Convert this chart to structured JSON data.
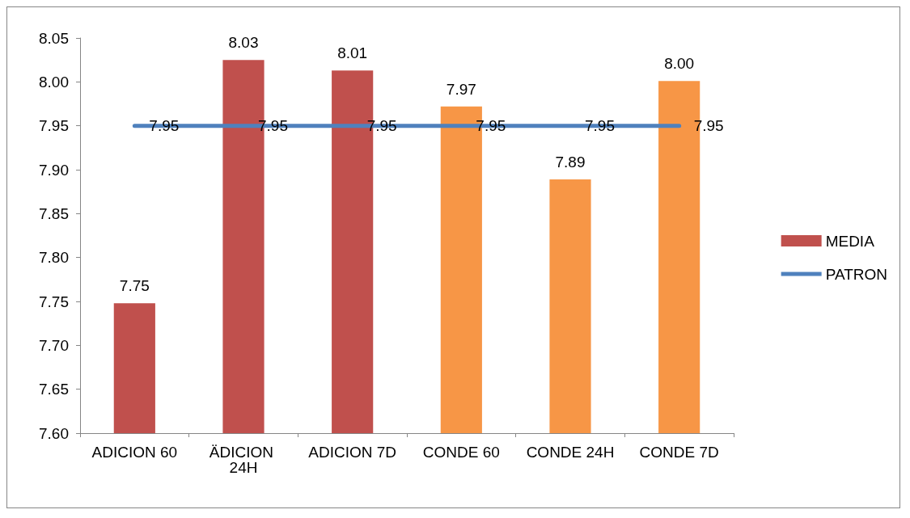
{
  "chart_data": {
    "type": "bar",
    "categories": [
      "ADICION 60",
      "ÄDICION 24H",
      "ADICION 7D",
      "CONDE 60",
      "CONDE 24H",
      "CONDE 7D"
    ],
    "series": [
      {
        "name": "MEDIA",
        "color": "#c0504d",
        "colors": [
          "#c0504d",
          "#c0504d",
          "#c0504d",
          "#f79646",
          "#f79646",
          "#f79646"
        ],
        "values": [
          7.748,
          8.025,
          8.013,
          7.972,
          7.889,
          8.001
        ],
        "value_labels": [
          "7.75",
          "8.03",
          "8.01",
          "7.97",
          "7.89",
          "8.00"
        ]
      },
      {
        "name": "PATRON",
        "type": "line",
        "color": "#4f81bd",
        "values": [
          7.95,
          7.95,
          7.95,
          7.95,
          7.95,
          7.95
        ],
        "value_labels": [
          "7.95",
          "7.95",
          "7.95",
          "7.95",
          "7.95",
          "7.95"
        ]
      }
    ],
    "ylim": [
      7.6,
      8.05
    ],
    "yticks": [
      {
        "value": 7.6,
        "label": "7.60"
      },
      {
        "value": 7.65,
        "label": "7.65"
      },
      {
        "value": 7.7,
        "label": "7.70"
      },
      {
        "value": 7.75,
        "label": "7.75"
      },
      {
        "value": 7.8,
        "label": "7.80"
      },
      {
        "value": 7.85,
        "label": "7.85"
      },
      {
        "value": 7.9,
        "label": "7.90"
      },
      {
        "value": 7.95,
        "label": "7.95"
      },
      {
        "value": 8.0,
        "label": "8.00"
      },
      {
        "value": 8.05,
        "label": "8.05"
      }
    ],
    "grid": false,
    "legend": "right",
    "marker": "none",
    "line_style": "solid"
  }
}
